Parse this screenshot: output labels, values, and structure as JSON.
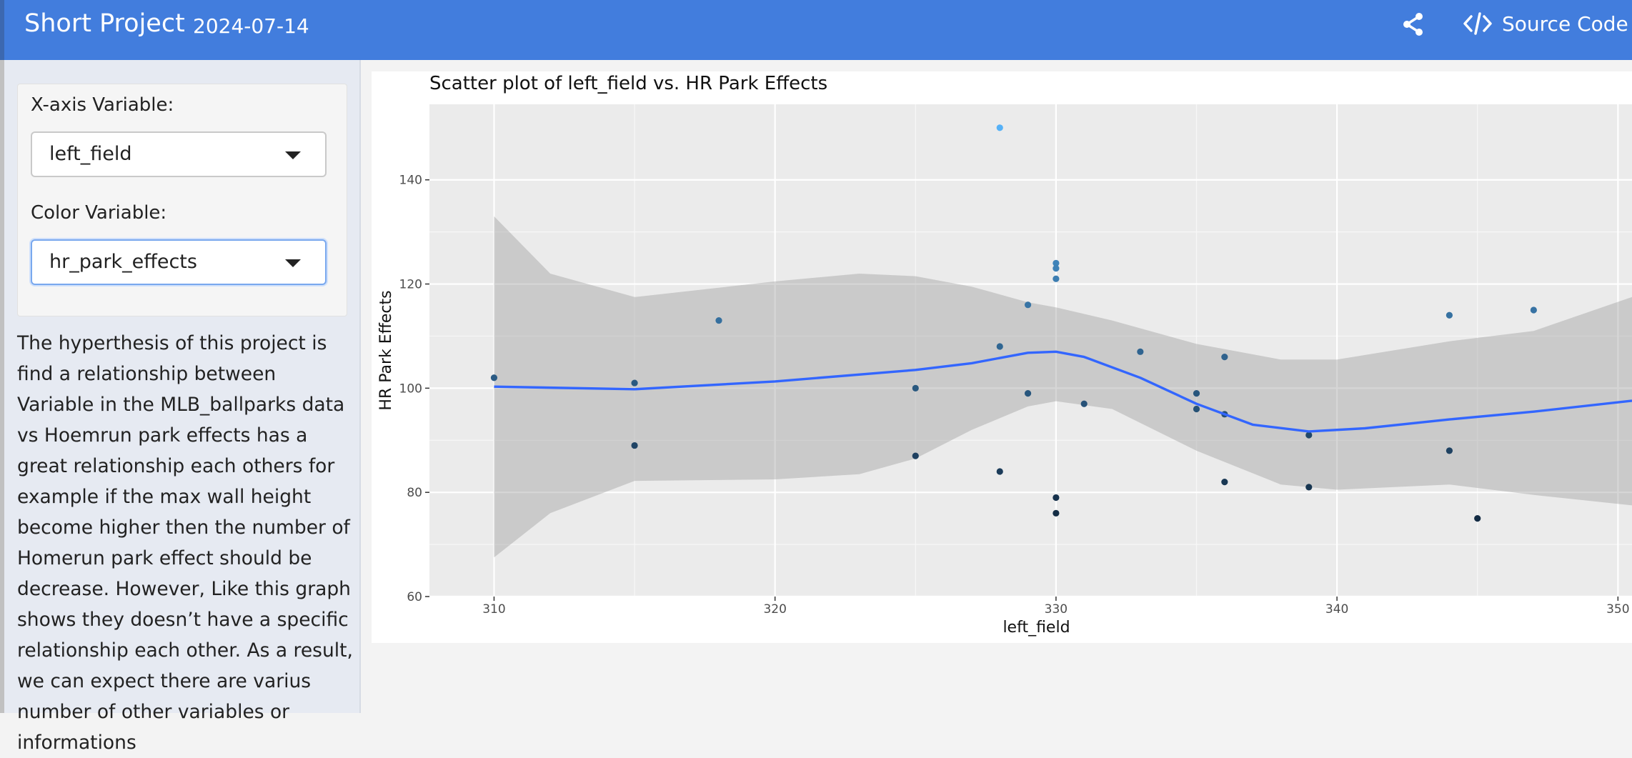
{
  "header": {
    "title": "Short Project",
    "date": "2024-07-14",
    "share_icon": "share-icon",
    "source_code_label": "Source Code",
    "source_code_icon": "code-icon",
    "bar_color": "#427ddd"
  },
  "sidebar": {
    "x_label": "X-axis Variable:",
    "x_value": "left_field",
    "color_label": "Color Variable:",
    "color_value": "hr_park_effects",
    "description": "The hyperthesis of this project is find a relationship between Variable in the MLB_ballparks data vs Hoemrun park effects has a great relationship each others for example if the max wall height become higher then the number of Homerun park effect should be decrease. However, Like this graph shows they doesn’t have a specific relationship each other. As a result, we can expect there are varius number of other variables or informations"
  },
  "chart_data": {
    "type": "scatter",
    "title": "Scatter plot of left_field vs. HR Park Effects",
    "xlabel": "left_field",
    "ylabel": "HR Park Effects",
    "xlim": [
      307.7,
      350.5
    ],
    "ylim": [
      60,
      154.5
    ],
    "xticks": [
      310,
      320,
      330,
      340,
      350
    ],
    "yticks": [
      60,
      80,
      100,
      120,
      140
    ],
    "grid": true,
    "color_scale": {
      "low": "#132b43",
      "high": "#56b1f7",
      "min": 75,
      "max": 150
    },
    "points": [
      {
        "x": 310,
        "y": 102
      },
      {
        "x": 315,
        "y": 101
      },
      {
        "x": 315,
        "y": 89
      },
      {
        "x": 318,
        "y": 113
      },
      {
        "x": 325,
        "y": 100
      },
      {
        "x": 325,
        "y": 87
      },
      {
        "x": 328,
        "y": 150
      },
      {
        "x": 328,
        "y": 108
      },
      {
        "x": 328,
        "y": 84
      },
      {
        "x": 329,
        "y": 116
      },
      {
        "x": 329,
        "y": 99
      },
      {
        "x": 330,
        "y": 124
      },
      {
        "x": 330,
        "y": 123
      },
      {
        "x": 330,
        "y": 121
      },
      {
        "x": 330,
        "y": 79
      },
      {
        "x": 330,
        "y": 76
      },
      {
        "x": 331,
        "y": 97
      },
      {
        "x": 333,
        "y": 107
      },
      {
        "x": 335,
        "y": 99
      },
      {
        "x": 335,
        "y": 96
      },
      {
        "x": 336,
        "y": 106
      },
      {
        "x": 336,
        "y": 95
      },
      {
        "x": 336,
        "y": 82
      },
      {
        "x": 339,
        "y": 91
      },
      {
        "x": 339,
        "y": 81
      },
      {
        "x": 344,
        "y": 114
      },
      {
        "x": 344,
        "y": 88
      },
      {
        "x": 345,
        "y": 75
      },
      {
        "x": 347,
        "y": 115
      }
    ],
    "smooth": {
      "color": "#3366ff",
      "fit": [
        {
          "x": 310,
          "y": 100.3
        },
        {
          "x": 315,
          "y": 99.8
        },
        {
          "x": 320,
          "y": 101.3
        },
        {
          "x": 325,
          "y": 103.5
        },
        {
          "x": 327,
          "y": 104.8
        },
        {
          "x": 329,
          "y": 106.8
        },
        {
          "x": 330,
          "y": 107
        },
        {
          "x": 331,
          "y": 106
        },
        {
          "x": 333,
          "y": 102
        },
        {
          "x": 335,
          "y": 97
        },
        {
          "x": 337,
          "y": 93
        },
        {
          "x": 339,
          "y": 91.7
        },
        {
          "x": 341,
          "y": 92.3
        },
        {
          "x": 344,
          "y": 94
        },
        {
          "x": 347,
          "y": 95.5
        },
        {
          "x": 350.5,
          "y": 97.6
        }
      ],
      "upper": [
        {
          "x": 310,
          "y": 133
        },
        {
          "x": 312,
          "y": 122
        },
        {
          "x": 315,
          "y": 117.5
        },
        {
          "x": 320,
          "y": 120.5
        },
        {
          "x": 323,
          "y": 122
        },
        {
          "x": 325,
          "y": 121.5
        },
        {
          "x": 327,
          "y": 119.5
        },
        {
          "x": 329,
          "y": 116.5
        },
        {
          "x": 330,
          "y": 115.5
        },
        {
          "x": 332,
          "y": 113
        },
        {
          "x": 335,
          "y": 108.5
        },
        {
          "x": 338,
          "y": 105.5
        },
        {
          "x": 340,
          "y": 105.5
        },
        {
          "x": 344,
          "y": 109
        },
        {
          "x": 347,
          "y": 111
        },
        {
          "x": 350.5,
          "y": 117.5
        }
      ],
      "lower": [
        {
          "x": 310,
          "y": 67.5
        },
        {
          "x": 312,
          "y": 76
        },
        {
          "x": 315,
          "y": 82.2
        },
        {
          "x": 320,
          "y": 82.5
        },
        {
          "x": 323,
          "y": 83.5
        },
        {
          "x": 325,
          "y": 86.5
        },
        {
          "x": 327,
          "y": 92
        },
        {
          "x": 329,
          "y": 96.5
        },
        {
          "x": 330,
          "y": 97.5
        },
        {
          "x": 332,
          "y": 96
        },
        {
          "x": 335,
          "y": 88
        },
        {
          "x": 338,
          "y": 81.5
        },
        {
          "x": 340,
          "y": 80.5
        },
        {
          "x": 344,
          "y": 81.5
        },
        {
          "x": 347,
          "y": 79.5
        },
        {
          "x": 350.5,
          "y": 77.5
        }
      ]
    }
  }
}
